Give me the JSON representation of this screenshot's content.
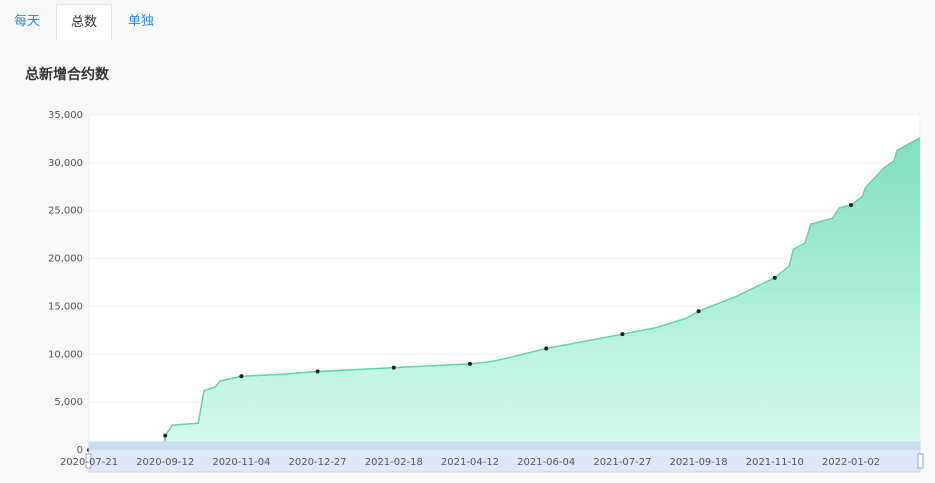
{
  "tabs": [
    "每天",
    "总数",
    "单独"
  ],
  "active_tab": 1,
  "chart_data": {
    "type": "area",
    "title": "总新增合约数",
    "color": "#5dd6a8",
    "x": [
      "2020-07-21",
      "2020-09-11",
      "2020-09-12",
      "2020-09-17",
      "2020-10-05",
      "2020-10-09",
      "2020-10-17",
      "2020-10-20",
      "2020-11-04",
      "2020-12-01",
      "2020-12-27",
      "2021-02-18",
      "2021-04-12",
      "2021-04-25",
      "2021-05-05",
      "2021-06-04",
      "2021-07-27",
      "2021-08-20",
      "2021-09-10",
      "2021-09-18",
      "2021-10-15",
      "2021-11-10",
      "2021-11-20",
      "2021-11-23",
      "2021-12-01",
      "2021-12-05",
      "2021-12-20",
      "2021-12-25",
      "2022-01-02",
      "2022-01-10",
      "2022-01-12",
      "2022-01-25",
      "2022-02-01",
      "2022-02-03",
      "2022-02-19"
    ],
    "values": [
      0,
      0,
      1500,
      2600,
      2800,
      6200,
      6600,
      7200,
      7700,
      7900,
      8200,
      8600,
      9000,
      9200,
      9500,
      10600,
      12100,
      12800,
      13800,
      14500,
      16100,
      18000,
      19200,
      21000,
      21600,
      23600,
      24200,
      25300,
      25600,
      26500,
      27400,
      29500,
      30200,
      31300,
      32600
    ],
    "xlim": [
      "2020-07-21",
      "2022-02-19"
    ],
    "xticks": [
      "2020-07-21",
      "2020-09-12",
      "2020-11-04",
      "2020-12-27",
      "2021-02-18",
      "2021-04-12",
      "2021-06-04",
      "2021-07-27",
      "2021-09-18",
      "2021-11-10",
      "2022-01-02"
    ],
    "ylim": [
      0,
      35000
    ],
    "yticks": [
      0,
      {
        "value": 5000,
        "label": "5,000"
      },
      {
        "value": 10000,
        "label": "10,000"
      },
      {
        "value": 15000,
        "label": "15,000"
      },
      {
        "value": 20000,
        "label": "20,000"
      },
      {
        "value": 25000,
        "label": "25,000"
      },
      {
        "value": 30000,
        "label": "30,000"
      },
      {
        "value": 35000,
        "label": "35,000"
      }
    ],
    "grid": true
  }
}
